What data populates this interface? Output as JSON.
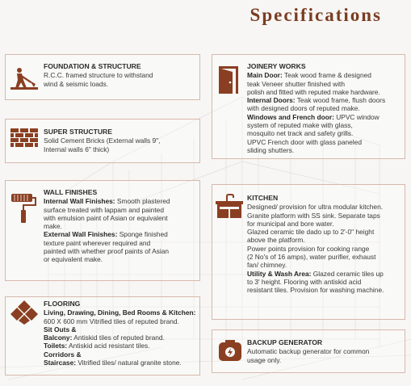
{
  "page_title": "Specifications",
  "colors": {
    "accent": "#7a3d22",
    "border": "#d7b8ad",
    "icon": "#8a3f22"
  },
  "sections": {
    "foundation": {
      "icon": "worker-digging-icon",
      "title": "FOUNDATION & STRUCTURE",
      "lines": [
        "R.C.C. framed structure to withstand",
        "wind & seismic loads."
      ]
    },
    "superstructure": {
      "icon": "brick-wall-icon",
      "title": "SUPER STRUCTURE",
      "lines": [
        "Solid Cement Bricks (External walls 9\",",
        "Internal walls 6\" thick)"
      ]
    },
    "wall_finishes": {
      "icon": "paint-roller-icon",
      "title": "WALL FINISHES",
      "internal_label": "Internal Wall Finishes:",
      "internal_lines": [
        "Smooth plastered",
        "surface treated with lappam and painted",
        "with emulsion paint of Asian or equivalent",
        "make."
      ],
      "external_label": "External Wall Finishes:",
      "external_lines": [
        "Sponge finished",
        "texture paint wherever required and",
        "painted with whether proof paints of Asian",
        "or equivalent make."
      ]
    },
    "flooring": {
      "icon": "floor-tiles-icon",
      "title": "FLOORING",
      "rooms_label": "Living, Drawing, Dining, Bed Rooms & Kitchen:",
      "rooms_value": "600 X 600 mm Vitrified tiles of reputed brand.",
      "sitouts_label": "Sit Outs &",
      "balcony_label": "Balcony:",
      "balcony_value": "Antiskid tiles of reputed brand.",
      "toilets_label": "Toilets:",
      "toilets_value": "Antiskid acid resistant tiles.",
      "corridors_label": "Corridors &",
      "staircase_label": "Staircase:",
      "staircase_value": "Vitrified tiles/ natural granite stone."
    },
    "joinery": {
      "icon": "door-icon",
      "title": "JOINERY WORKS",
      "main_label": "Main Door:",
      "main_lines": [
        "Teak wood frame & designed",
        "teak Veneer shutter finished with",
        "polish and fitted with reputed make hardware."
      ],
      "internal_label": "Internal Doors:",
      "internal_lines": [
        "Teak wood frame, flush doors",
        "with designed doors of reputed make."
      ],
      "windows_label": "Windows and French door:",
      "windows_lines": [
        "UPVC window",
        "system of reputed make with glass,",
        "mosquito net track and safety grills.",
        "UPVC French door with glass paneled",
        "sliding shutters."
      ]
    },
    "kitchen": {
      "icon": "kitchen-sink-icon",
      "title": "KITCHEN",
      "lines": [
        "Designed/ provision for ultra modular kitchen.",
        "Granite platform with SS sink. Separate taps",
        "for municipal and bore water.",
        "Glazed ceramic tile dado up to 2'-0\" height",
        "above the platform.",
        "Power points provision for cooking range",
        "(2 No's of 16 amps), water purifier, exhaust",
        "fan/ chimney."
      ],
      "utility_label": "Utility & Wash Area:",
      "utility_lines": [
        "Glazed ceramic tiles up",
        "to 3' height. Flooring with antiskid acid",
        "resistant tiles. Provision for washing machine."
      ]
    },
    "generator": {
      "icon": "generator-icon",
      "title": "BACKUP GENERATOR",
      "lines": [
        "Automatic backup generator for common",
        "usage only."
      ]
    }
  }
}
